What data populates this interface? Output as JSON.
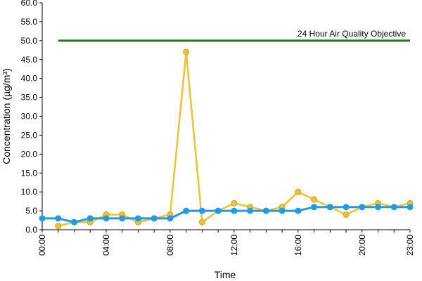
{
  "chart_data": {
    "type": "line",
    "title": "",
    "xlabel": "Time",
    "ylabel": "Concentration (µg/m³)",
    "x": [
      0,
      1,
      2,
      3,
      4,
      5,
      6,
      7,
      8,
      9,
      10,
      11,
      12,
      13,
      14,
      15,
      16,
      17,
      18,
      19,
      20,
      21,
      22,
      23
    ],
    "xlim": [
      0,
      23
    ],
    "ylim": [
      0,
      60
    ],
    "x_tick_values": [
      0,
      4,
      8,
      12,
      16,
      20,
      23
    ],
    "x_tick_labels": [
      "00:00",
      "04:00",
      "08:00",
      "12:00",
      "16:00",
      "20:00",
      "23:00"
    ],
    "y_tick_values": [
      0,
      5,
      10,
      15,
      20,
      25,
      30,
      35,
      40,
      45,
      50,
      55,
      60
    ],
    "y_tick_labels": [
      "0.0",
      "5.0",
      "10.0",
      "15.0",
      "20.0",
      "25.0",
      "30.0",
      "35.0",
      "40.0",
      "45.0",
      "50.0",
      "55.0",
      "60.0"
    ],
    "grid": false,
    "series": [
      {
        "color": "#f2c12e",
        "marker_edge": "#d4a017",
        "values": [
          null,
          1,
          2,
          2,
          4,
          4,
          2,
          3,
          4,
          47,
          2,
          5,
          7,
          6,
          5,
          6,
          10,
          8,
          6,
          4,
          6,
          7,
          6,
          7
        ]
      },
      {
        "color": "#1e9be9",
        "marker_edge": "#1e9be9",
        "values": [
          3,
          3,
          2,
          3,
          3,
          3,
          3,
          3,
          3,
          5,
          5,
          5,
          5,
          5,
          5,
          5,
          5,
          6,
          6,
          6,
          6,
          6,
          6,
          6
        ]
      }
    ],
    "reference_line": {
      "label": "24 Hour Air Quality Objective",
      "value": 50,
      "x_start": 1,
      "x_end": 23,
      "color": "#1f7a1f"
    }
  }
}
